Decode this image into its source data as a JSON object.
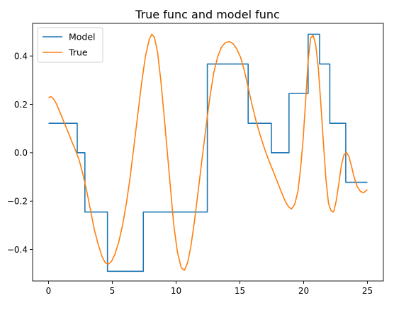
{
  "chart_data": {
    "type": "line",
    "title": "True func and model func",
    "xlabel": "",
    "ylabel": "",
    "xlim": [
      -1.25,
      26.25
    ],
    "ylim": [
      -0.53,
      0.535
    ],
    "xticks": [
      0,
      5,
      10,
      15,
      20,
      25
    ],
    "yticks": [
      -0.4,
      -0.2,
      0.0,
      0.2,
      0.4
    ],
    "xtick_labels": [
      "0",
      "5",
      "10",
      "15",
      "20",
      "25"
    ],
    "ytick_labels": [
      "−0.4",
      "−0.2",
      "0.0",
      "0.2",
      "0.4"
    ],
    "grid": false,
    "legend": {
      "position": "top-left"
    },
    "series": [
      {
        "name": "Model",
        "color": "#1f77b4",
        "points": [
          [
            0.0,
            0.122
          ],
          [
            2.25,
            0.122
          ],
          [
            2.25,
            0.0
          ],
          [
            2.85,
            0.0
          ],
          [
            2.85,
            -0.245
          ],
          [
            4.62,
            -0.245
          ],
          [
            4.62,
            -0.49
          ],
          [
            7.43,
            -0.49
          ],
          [
            7.43,
            -0.245
          ],
          [
            12.45,
            -0.245
          ],
          [
            12.45,
            0.367
          ],
          [
            15.65,
            0.367
          ],
          [
            15.65,
            0.122
          ],
          [
            17.47,
            0.122
          ],
          [
            17.47,
            0.0
          ],
          [
            18.85,
            0.0
          ],
          [
            18.85,
            0.245
          ],
          [
            20.35,
            0.245
          ],
          [
            20.35,
            0.49
          ],
          [
            21.25,
            0.49
          ],
          [
            21.25,
            0.367
          ],
          [
            22.05,
            0.367
          ],
          [
            22.05,
            0.122
          ],
          [
            23.3,
            0.122
          ],
          [
            23.3,
            -0.122
          ],
          [
            25.0,
            -0.122
          ]
        ]
      },
      {
        "name": "True",
        "color": "#ff7f0e",
        "points": [
          [
            0.0,
            0.228
          ],
          [
            0.2,
            0.232
          ],
          [
            0.4,
            0.222
          ],
          [
            0.6,
            0.204
          ],
          [
            0.8,
            0.18
          ],
          [
            1.0,
            0.154
          ],
          [
            1.2,
            0.128
          ],
          [
            1.5,
            0.09
          ],
          [
            1.8,
            0.05
          ],
          [
            2.1,
            0.012
          ],
          [
            2.4,
            -0.03
          ],
          [
            2.7,
            -0.09
          ],
          [
            3.0,
            -0.16
          ],
          [
            3.3,
            -0.24
          ],
          [
            3.6,
            -0.32
          ],
          [
            3.9,
            -0.38
          ],
          [
            4.2,
            -0.43
          ],
          [
            4.45,
            -0.455
          ],
          [
            4.7,
            -0.46
          ],
          [
            4.95,
            -0.448
          ],
          [
            5.2,
            -0.42
          ],
          [
            5.5,
            -0.37
          ],
          [
            5.8,
            -0.3
          ],
          [
            6.1,
            -0.21
          ],
          [
            6.4,
            -0.1
          ],
          [
            6.7,
            0.03
          ],
          [
            7.0,
            0.16
          ],
          [
            7.3,
            0.29
          ],
          [
            7.6,
            0.4
          ],
          [
            7.9,
            0.47
          ],
          [
            8.1,
            0.49
          ],
          [
            8.3,
            0.478
          ],
          [
            8.55,
            0.415
          ],
          [
            8.8,
            0.3
          ],
          [
            9.05,
            0.16
          ],
          [
            9.3,
            0.01
          ],
          [
            9.55,
            -0.14
          ],
          [
            9.8,
            -0.29
          ],
          [
            10.1,
            -0.41
          ],
          [
            10.4,
            -0.475
          ],
          [
            10.65,
            -0.486
          ],
          [
            10.9,
            -0.455
          ],
          [
            11.15,
            -0.39
          ],
          [
            11.45,
            -0.28
          ],
          [
            11.75,
            -0.15
          ],
          [
            12.05,
            -0.02
          ],
          [
            12.35,
            0.11
          ],
          [
            12.65,
            0.23
          ],
          [
            12.95,
            0.33
          ],
          [
            13.25,
            0.395
          ],
          [
            13.55,
            0.436
          ],
          [
            13.85,
            0.455
          ],
          [
            14.15,
            0.46
          ],
          [
            14.45,
            0.452
          ],
          [
            14.75,
            0.43
          ],
          [
            15.05,
            0.395
          ],
          [
            15.35,
            0.34
          ],
          [
            15.65,
            0.27
          ],
          [
            15.95,
            0.2
          ],
          [
            16.25,
            0.135
          ],
          [
            16.55,
            0.08
          ],
          [
            16.85,
            0.03
          ],
          [
            17.15,
            -0.015
          ],
          [
            17.45,
            -0.055
          ],
          [
            17.75,
            -0.095
          ],
          [
            18.05,
            -0.135
          ],
          [
            18.35,
            -0.175
          ],
          [
            18.6,
            -0.205
          ],
          [
            18.85,
            -0.225
          ],
          [
            19.05,
            -0.232
          ],
          [
            19.3,
            -0.213
          ],
          [
            19.55,
            -0.16
          ],
          [
            19.75,
            -0.07
          ],
          [
            19.95,
            0.05
          ],
          [
            20.15,
            0.21
          ],
          [
            20.35,
            0.38
          ],
          [
            20.55,
            0.475
          ],
          [
            20.75,
            0.485
          ],
          [
            20.95,
            0.445
          ],
          [
            21.15,
            0.35
          ],
          [
            21.35,
            0.2
          ],
          [
            21.55,
            0.04
          ],
          [
            21.75,
            -0.11
          ],
          [
            21.95,
            -0.21
          ],
          [
            22.15,
            -0.24
          ],
          [
            22.35,
            -0.245
          ],
          [
            22.55,
            -0.2
          ],
          [
            22.75,
            -0.13
          ],
          [
            22.95,
            -0.055
          ],
          [
            23.15,
            -0.01
          ],
          [
            23.35,
            0.002
          ],
          [
            23.55,
            -0.015
          ],
          [
            23.75,
            -0.055
          ],
          [
            23.95,
            -0.1
          ],
          [
            24.2,
            -0.14
          ],
          [
            24.45,
            -0.16
          ],
          [
            24.7,
            -0.165
          ],
          [
            25.0,
            -0.152
          ]
        ]
      }
    ]
  }
}
